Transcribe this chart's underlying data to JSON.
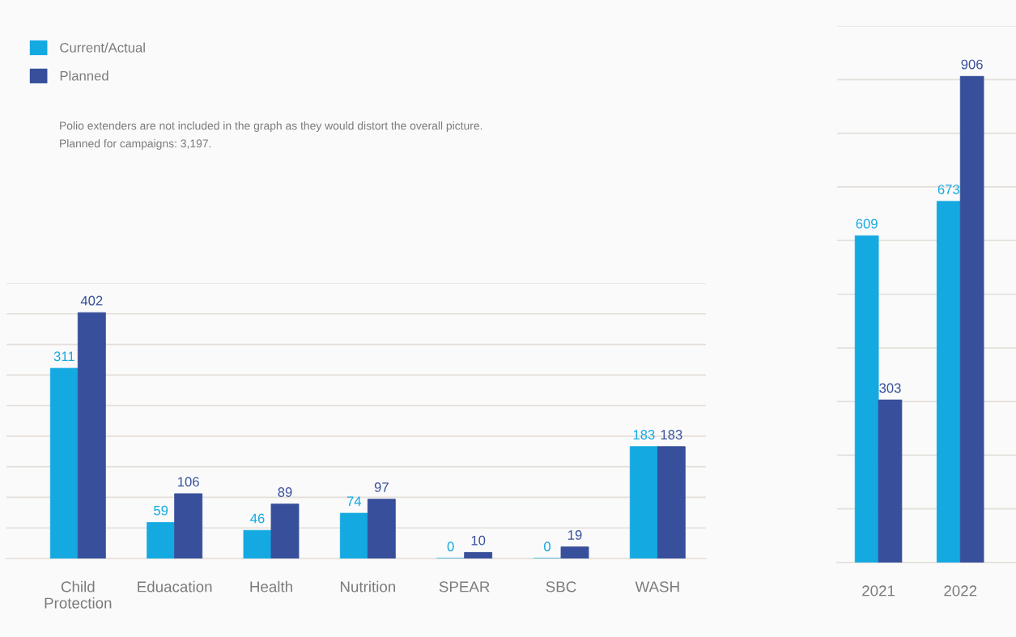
{
  "chart_data": [
    {
      "type": "bar",
      "categories": [
        "Child Protection",
        "Eduacation",
        "Health",
        "Nutrition",
        "SPEAR",
        "SBC",
        "WASH"
      ],
      "series": [
        {
          "name": "Current/Actual",
          "color": "#15a9e1",
          "values": [
            311,
            59,
            46,
            74,
            0,
            0,
            183
          ]
        },
        {
          "name": "Planned",
          "color": "#384f9b",
          "values": [
            402,
            106,
            89,
            97,
            10,
            19,
            183
          ]
        }
      ],
      "ylim": [
        0,
        450
      ],
      "yticks": [
        0,
        50,
        100,
        150,
        200,
        250,
        300,
        350,
        400,
        450
      ],
      "grid": "y",
      "tick_labels": "x",
      "data_labels": true,
      "legend": "top left",
      "annotations": [
        "Polio extenders are not included in the graph as they would distort the overall picture.",
        "Planned for campaigns: 3,197."
      ]
    },
    {
      "type": "bar",
      "categories": [
        "2021",
        "2022"
      ],
      "series": [
        {
          "color": "#15a9e1",
          "values": [
            609,
            673
          ]
        },
        {
          "color": "#384f9b",
          "values": [
            303,
            906
          ]
        }
      ],
      "ylim": [
        0,
        1000
      ],
      "yticks": [
        0,
        100,
        200,
        300,
        400,
        500,
        600,
        700,
        800,
        900,
        1000
      ],
      "grid": "y",
      "tick_labels": "x",
      "data_labels": true
    }
  ]
}
